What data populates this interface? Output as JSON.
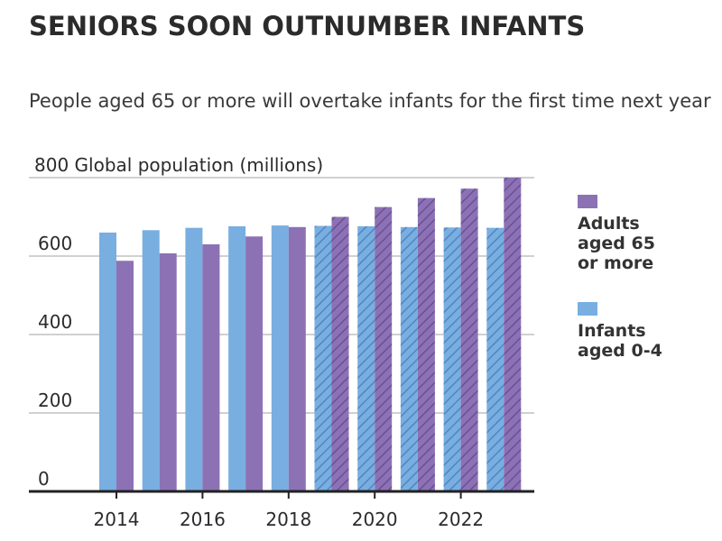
{
  "title": "SENIORS SOON OUTNUMBER INFANTS",
  "subtitle": "People aged 65 or more will overtake infants for the first time next year",
  "chart_data": {
    "type": "bar",
    "title": "SENIORS SOON OUTNUMBER INFANTS",
    "subtitle": "People aged 65 or more will overtake infants for the first time next year",
    "ylabel": "Global population (millions)",
    "xlabel": "",
    "ylim": [
      0,
      800
    ],
    "yticks": [
      0,
      200,
      400,
      600,
      800
    ],
    "grid": true,
    "legend_position": "right",
    "x": [
      2014,
      2015,
      2016,
      2017,
      2018,
      2019,
      2020,
      2021,
      2022,
      2023
    ],
    "x_tick_labels": [
      "2014",
      "2016",
      "2018",
      "2020",
      "2022"
    ],
    "x_tick_values": [
      2014,
      2016,
      2018,
      2020,
      2022
    ],
    "projected_from": 2019,
    "series": [
      {
        "name": "Infants aged 0-4",
        "color": "#79aee0",
        "values": [
          660,
          666,
          672,
          676,
          678,
          677,
          676,
          674,
          673,
          672
        ]
      },
      {
        "name": "Adults aged 65 or more",
        "color": "#8c72b4",
        "values": [
          588,
          607,
          630,
          650,
          674,
          700,
          725,
          748,
          772,
          800
        ]
      }
    ],
    "legend": [
      {
        "label_lines": [
          "Adults",
          "aged 65",
          "or more"
        ],
        "color": "#8c72b4"
      },
      {
        "label_lines": [
          "Infants",
          "aged 0-4"
        ],
        "color": "#79aee0"
      }
    ]
  }
}
